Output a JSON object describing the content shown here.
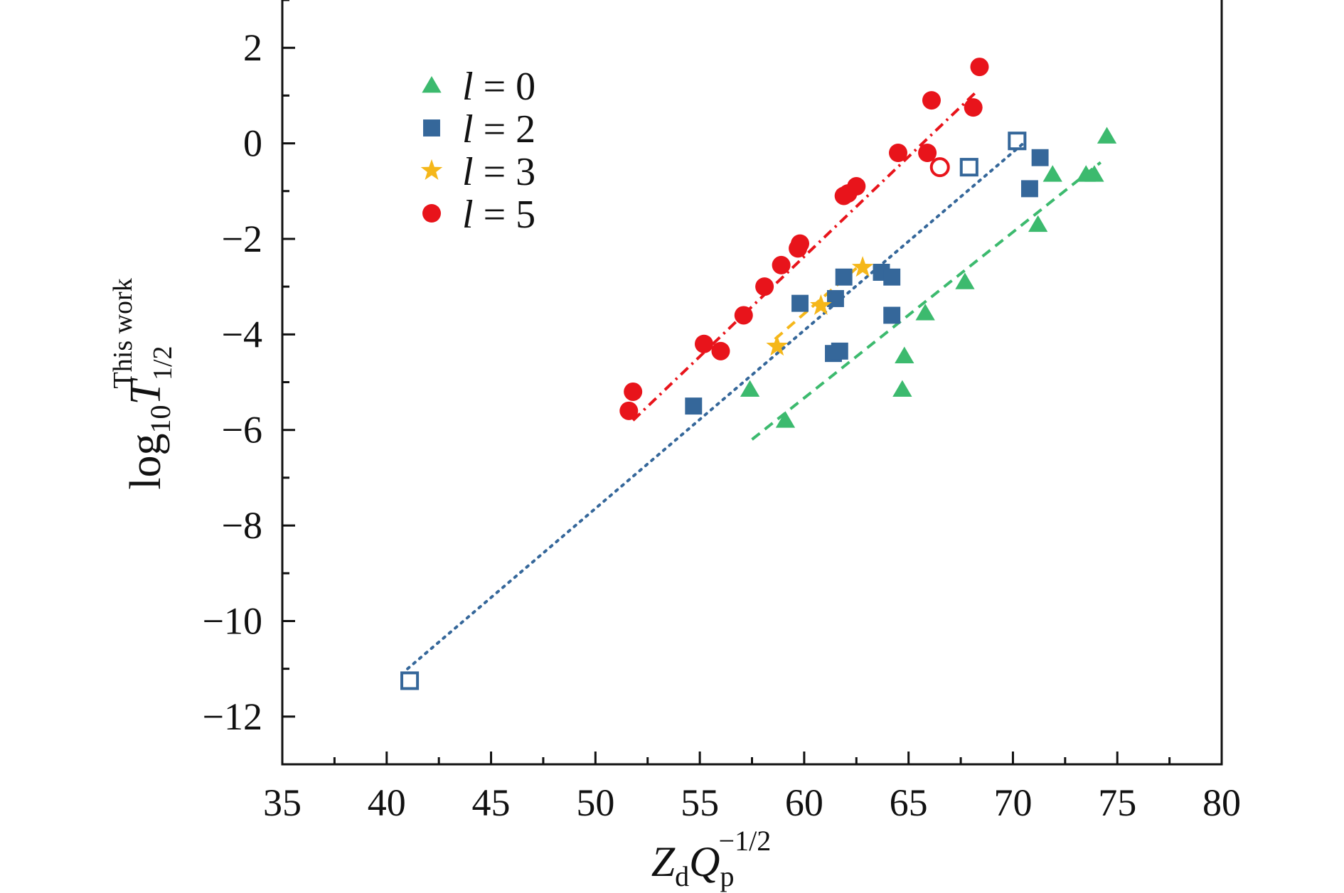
{
  "chart_data": {
    "type": "scatter",
    "title": "",
    "xlabel": {
      "main": "Z",
      "sub1": "d",
      "main2": "Q",
      "sub2": "p",
      "sup2": "−1/2"
    },
    "ylabel": {
      "prefix": "log",
      "prefix_sub": "10",
      "main": "T",
      "sub": "1/2",
      "sup": "This work"
    },
    "xlim": [
      35,
      80
    ],
    "ylim": [
      -13,
      3
    ],
    "x_ticks": [
      35,
      40,
      45,
      50,
      55,
      60,
      65,
      70,
      75,
      80
    ],
    "x_tick_labels": [
      "35",
      "40",
      "45",
      "50",
      "55",
      "60",
      "65",
      "70",
      "75",
      "80"
    ],
    "y_ticks": [
      -12,
      -10,
      -8,
      -6,
      -4,
      -2,
      0,
      2
    ],
    "y_tick_labels": [
      "−12",
      "−10",
      "−8",
      "−6",
      "−4",
      "−2",
      "0",
      "2"
    ],
    "grid": false,
    "legend_placement": "top-left",
    "series": [
      {
        "name": "l = 0",
        "legend_var": "l",
        "legend_value": "= 0",
        "marker": "triangle",
        "color": "#3cba6e",
        "line_style": "dashed",
        "fit_line": [
          [
            57.5,
            -6.2
          ],
          [
            74.2,
            -0.4
          ]
        ],
        "points": [
          [
            57.4,
            -5.15
          ],
          [
            59.1,
            -5.8
          ],
          [
            64.7,
            -5.15
          ],
          [
            64.8,
            -4.45
          ],
          [
            65.8,
            -3.55
          ],
          [
            67.7,
            -2.9
          ],
          [
            71.2,
            -1.7
          ],
          [
            71.9,
            -0.65
          ],
          [
            73.5,
            -0.65
          ],
          [
            73.9,
            -0.65
          ],
          [
            74.5,
            0.15
          ]
        ],
        "hollow_points": []
      },
      {
        "name": "l = 2",
        "legend_var": "l",
        "legend_value": "= 2",
        "marker": "square",
        "color": "#35679a",
        "line_style": "dotted",
        "fit_line": [
          [
            41.0,
            -11.0
          ],
          [
            70.5,
            0.0
          ]
        ],
        "points": [
          [
            54.7,
            -5.5
          ],
          [
            59.8,
            -3.35
          ],
          [
            61.4,
            -4.4
          ],
          [
            61.5,
            -3.25
          ],
          [
            61.7,
            -4.35
          ],
          [
            61.9,
            -2.8
          ],
          [
            63.7,
            -2.7
          ],
          [
            64.2,
            -2.8
          ],
          [
            64.2,
            -3.6
          ],
          [
            70.8,
            -0.95
          ],
          [
            71.3,
            -0.3
          ]
        ],
        "hollow_points": [
          [
            41.1,
            -11.25
          ],
          [
            67.9,
            -0.5
          ],
          [
            70.2,
            0.05
          ]
        ]
      },
      {
        "name": "l = 3",
        "legend_var": "l",
        "legend_value": "= 3",
        "marker": "star",
        "color": "#f5b71a",
        "line_style": "dashed",
        "fit_line": [
          [
            58.6,
            -4.1
          ],
          [
            62.8,
            -2.5
          ]
        ],
        "points": [
          [
            58.7,
            -4.25
          ],
          [
            60.8,
            -3.4
          ],
          [
            62.8,
            -2.6
          ]
        ],
        "hollow_points": []
      },
      {
        "name": "l = 5",
        "legend_var": "l",
        "legend_value": "= 5",
        "marker": "circle",
        "color": "#e8141b",
        "line_style": "dash-dot",
        "fit_line": [
          [
            51.8,
            -5.8
          ],
          [
            68.3,
            1.1
          ]
        ],
        "points": [
          [
            51.6,
            -5.6
          ],
          [
            51.8,
            -5.2
          ],
          [
            55.2,
            -4.2
          ],
          [
            56.0,
            -4.35
          ],
          [
            57.1,
            -3.6
          ],
          [
            58.1,
            -3.0
          ],
          [
            58.9,
            -2.55
          ],
          [
            59.7,
            -2.2
          ],
          [
            59.8,
            -2.1
          ],
          [
            61.9,
            -1.1
          ],
          [
            62.1,
            -1.05
          ],
          [
            62.5,
            -0.9
          ],
          [
            64.5,
            -0.2
          ],
          [
            65.9,
            -0.2
          ],
          [
            66.1,
            0.9
          ],
          [
            68.1,
            0.75
          ],
          [
            68.4,
            1.6
          ]
        ],
        "hollow_points": [
          [
            66.5,
            -0.5
          ]
        ]
      }
    ]
  }
}
